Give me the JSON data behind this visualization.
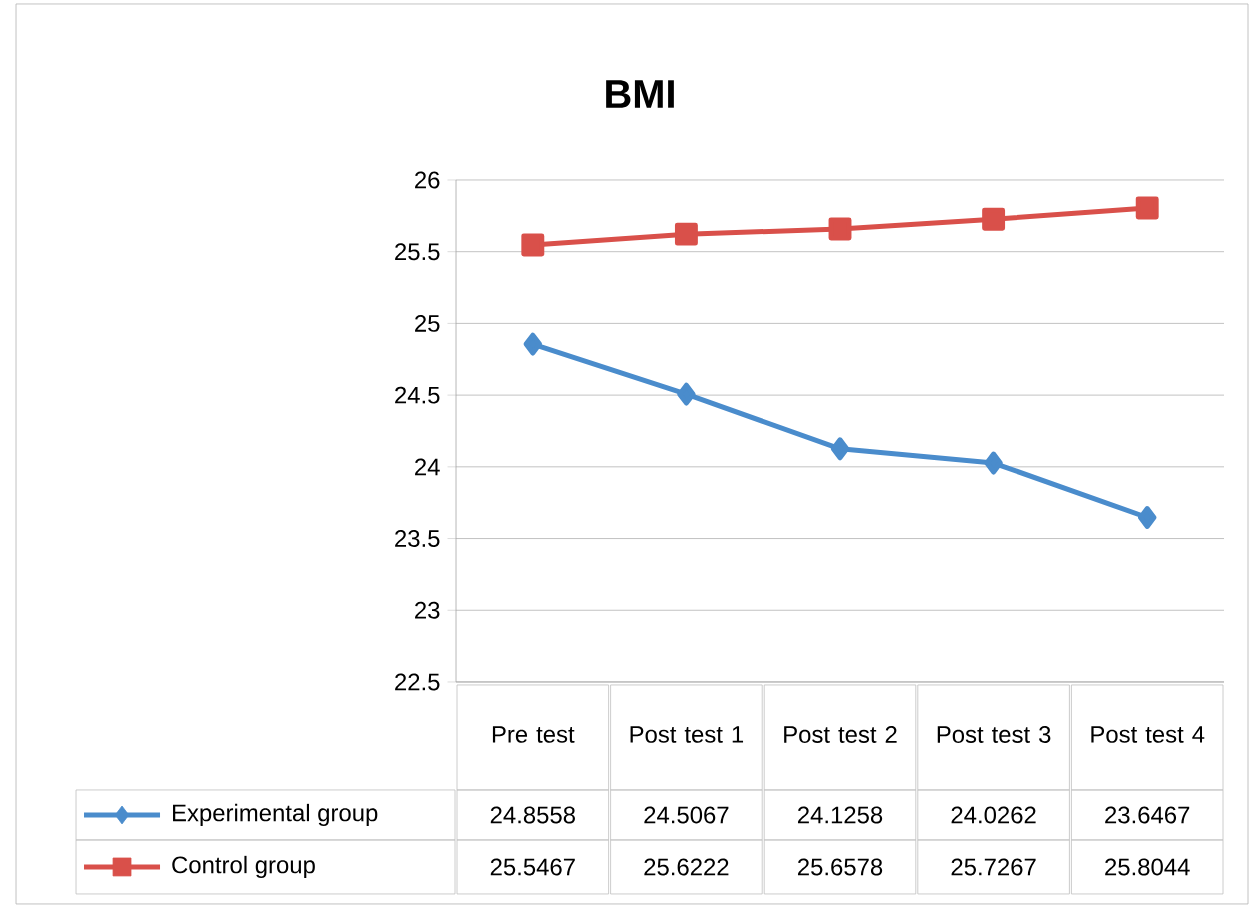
{
  "chart_data": {
    "type": "line",
    "title": "BMI",
    "categories": [
      "Pre test",
      "Post test 1",
      "Post test 2",
      "Post test 3",
      "Post test 4"
    ],
    "series": [
      {
        "name": "Experimental group",
        "color": "#4a8ccc",
        "marker": "diamond",
        "values": [
          24.8558,
          24.5067,
          24.1258,
          24.0262,
          23.6467
        ]
      },
      {
        "name": "Control group",
        "color": "#d9504a",
        "marker": "square",
        "values": [
          25.5467,
          25.6222,
          25.6578,
          25.7267,
          25.8044
        ]
      }
    ],
    "ylim": [
      22.5,
      26
    ],
    "yticks": [
      22.5,
      23,
      23.5,
      24,
      24.5,
      25,
      25.5,
      26
    ],
    "grid": "y",
    "legend": "bottom",
    "data_labels": true
  }
}
